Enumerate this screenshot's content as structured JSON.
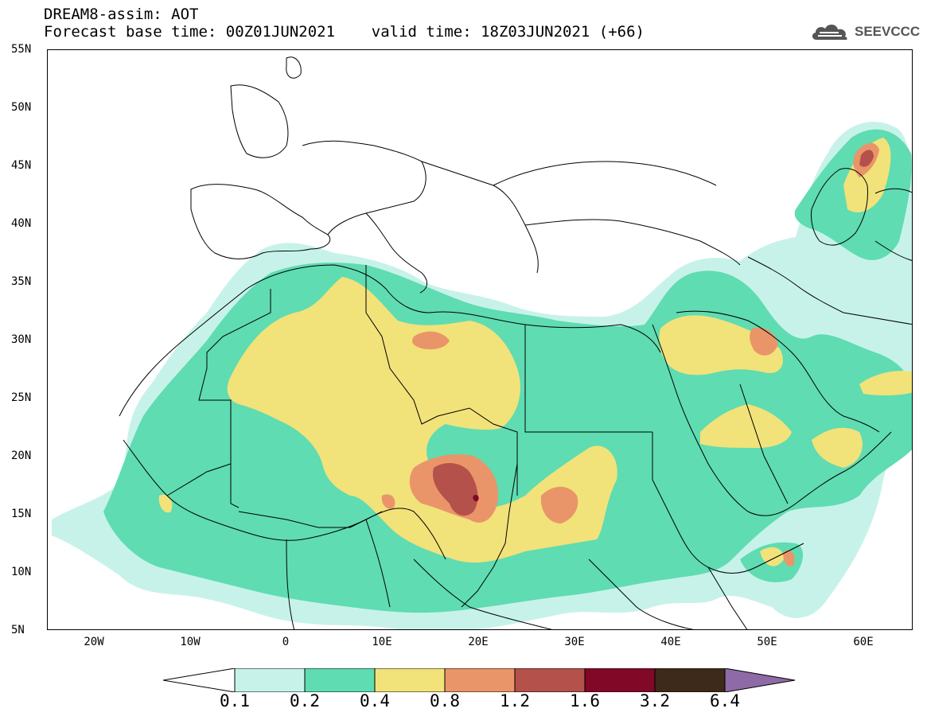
{
  "title": {
    "line1": "DREAM8-assim: AOT",
    "line2": "Forecast base time: 00Z01JUN2021    valid time: 18Z03JUN2021 (+66)"
  },
  "logo": {
    "text": "SEEVCCC",
    "icon": "cloud-icon"
  },
  "map": {
    "lon_range": [
      -25,
      65
    ],
    "lat_range": [
      5,
      55
    ],
    "lat_ticks": [
      "55N",
      "50N",
      "45N",
      "40N",
      "35N",
      "30N",
      "25N",
      "20N",
      "15N",
      "10N",
      "5N"
    ],
    "lon_ticks": [
      "20W",
      "10W",
      "0",
      "10E",
      "20E",
      "30E",
      "40E",
      "50E",
      "60E"
    ]
  },
  "legend": {
    "labels": [
      "0.1",
      "0.2",
      "0.4",
      "0.8",
      "1.2",
      "1.6",
      "3.2",
      "6.4"
    ],
    "colors": [
      "#ffffff",
      "#c7f2ea",
      "#5fdcb1",
      "#f2e27a",
      "#ea9569",
      "#b4514a",
      "#820827",
      "#3d2a1a",
      "#8e6aa6"
    ]
  },
  "colors": {
    "c1": "#c7f2ea",
    "c2": "#5fdcb1",
    "c3": "#f2e27a",
    "c4": "#ea9569",
    "c5": "#b4514a",
    "c6": "#820827",
    "c7": "#3d2a1a"
  }
}
